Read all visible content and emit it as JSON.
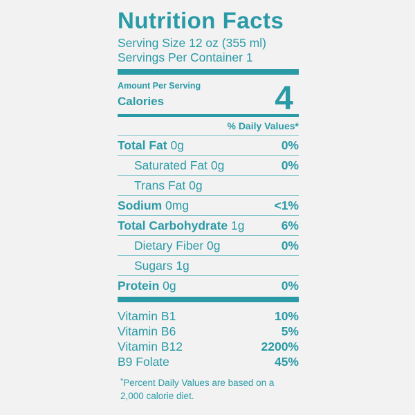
{
  "title": "Nutrition Facts",
  "serving_size": "Serving Size 12 oz (355 ml)",
  "servings_per_container": "Servings Per Container 1",
  "amount_per_serving": "Amount Per Serving",
  "calories_label": "Calories",
  "calories_value": "4",
  "daily_values_header": "% Daily Values*",
  "nutrients": [
    {
      "name": "Total Fat",
      "amount": "0g",
      "dv": "0%"
    },
    {
      "name": "Saturated Fat",
      "amount": "0g",
      "dv": "0%"
    },
    {
      "name": "Trans Fat",
      "amount": "0g",
      "dv": ""
    },
    {
      "name": "Sodium",
      "amount": "0mg",
      "dv": "<1%"
    },
    {
      "name": "Total Carbohydrate",
      "amount": "1g",
      "dv": "6%"
    },
    {
      "name": "Dietary Fiber",
      "amount": "0g",
      "dv": "0%"
    },
    {
      "name": "Sugars",
      "amount": "1g",
      "dv": ""
    },
    {
      "name": "Protein",
      "amount": "0g",
      "dv": "0%"
    }
  ],
  "vitamins": [
    {
      "name": "Vitamin B1",
      "dv": "10%"
    },
    {
      "name": "Vitamin B6",
      "dv": "5%"
    },
    {
      "name": "Vitamin B12",
      "dv": "2200%"
    },
    {
      "name": "B9 Folate",
      "dv": "45%"
    }
  ],
  "footnote_marker": "*",
  "footnote_line1": "Percent Daily Values are based on a",
  "footnote_line2": "2,000 calorie diet.",
  "colors": {
    "text": "#2a9aa6",
    "background": "#f2f2f2",
    "rule": "#7ec3cb"
  }
}
